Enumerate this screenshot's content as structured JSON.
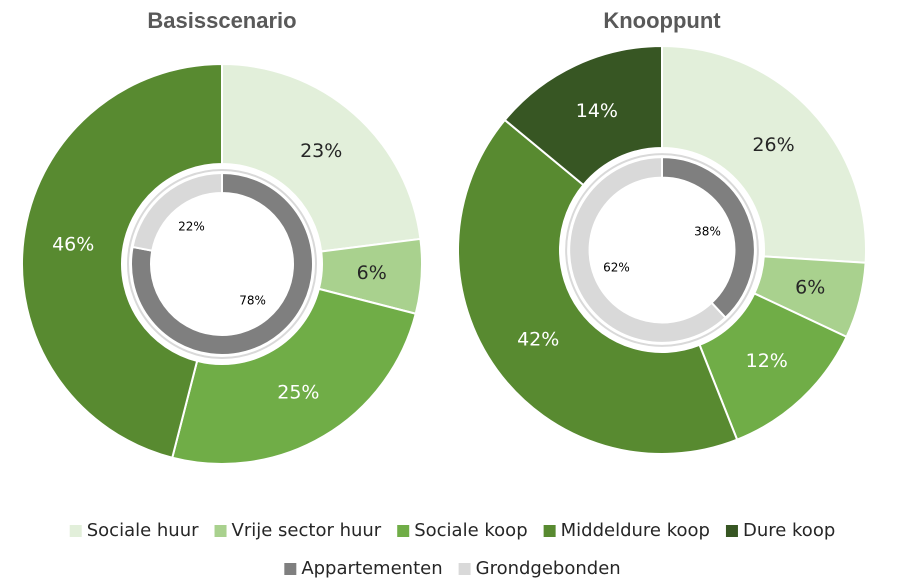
{
  "chart_data": {
    "type": "donut",
    "outer": {
      "categories": [
        "Sociale huur",
        "Vrije sector huur",
        "Sociale koop",
        "Middeldure koop",
        "Dure koop"
      ],
      "colors": [
        "#e2efda",
        "#a9d18e",
        "#70ad47",
        "#588a30",
        "#375623"
      ]
    },
    "inner": {
      "categories": [
        "Appartementen",
        "Grondgebonden"
      ],
      "colors": [
        "#7f7f7f",
        "#d9d9d9"
      ]
    },
    "charts": [
      {
        "title": "Basisscenario",
        "outer_values": [
          23,
          6,
          25,
          46,
          null
        ],
        "outer_value_labels": [
          "23%",
          "6%",
          "25%",
          "46%",
          null
        ],
        "inner_values": [
          78,
          22
        ],
        "inner_value_labels": [
          "78%",
          "22%"
        ]
      },
      {
        "title": "Knooppunt",
        "outer_values": [
          26,
          6,
          12,
          42,
          14
        ],
        "outer_value_labels": [
          "26%",
          "6%",
          "12%",
          "42%",
          "14%"
        ],
        "inner_values": [
          38,
          62
        ],
        "inner_value_labels": [
          "38%",
          "62%"
        ]
      }
    ]
  }
}
